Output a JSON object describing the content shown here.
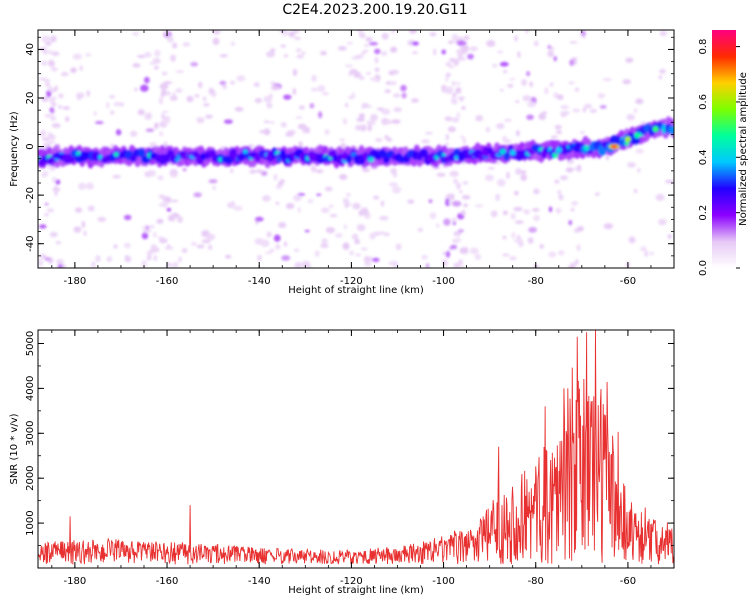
{
  "title": "C2E4.2023.200.19.20.G11",
  "chart_data": [
    {
      "type": "heatmap",
      "xlabel": "Height of straight line (km)",
      "ylabel": "Frequency (Hz)",
      "xlim": [
        -188,
        -50
      ],
      "ylim": [
        -50,
        48
      ],
      "xticks": [
        -180,
        -160,
        -140,
        -120,
        -100,
        -80,
        -60
      ],
      "yticks": [
        -40,
        -20,
        0,
        20,
        40
      ],
      "colorbar": {
        "label": "Normalized spectral amplitude",
        "range": [
          0,
          0.86
        ],
        "ticks": [
          0.0,
          0.2,
          0.4,
          0.6,
          0.8
        ],
        "colormap": [
          "#ffffff",
          "#e6c8f5",
          "#8c00ff",
          "#2200ff",
          "#00c8ff",
          "#00ff9c",
          "#7cff00",
          "#ffd000",
          "#ff2a00",
          "#ff0080"
        ]
      },
      "ridge": [
        {
          "x": -188,
          "y": -5
        },
        {
          "x": -180,
          "y": -4
        },
        {
          "x": -160,
          "y": -4
        },
        {
          "x": -140,
          "y": -4
        },
        {
          "x": -120,
          "y": -4
        },
        {
          "x": -100,
          "y": -4
        },
        {
          "x": -90,
          "y": -3
        },
        {
          "x": -80,
          "y": -2
        },
        {
          "x": -72,
          "y": -1
        },
        {
          "x": -65,
          "y": 0
        },
        {
          "x": -60,
          "y": 3
        },
        {
          "x": -55,
          "y": 7
        },
        {
          "x": -51,
          "y": 8
        }
      ],
      "ridge_peak": {
        "x": -63,
        "y": 0,
        "amplitude": 0.86
      }
    },
    {
      "type": "line",
      "xlabel": "Height of straight line (km)",
      "ylabel": "SNR (10 * v/v)",
      "xlim": [
        -188,
        -50
      ],
      "ylim": [
        0,
        5300
      ],
      "xticks": [
        -180,
        -160,
        -140,
        -120,
        -100,
        -80,
        -60
      ],
      "yticks": [
        1000,
        2000,
        3000,
        4000,
        5000
      ],
      "line_color": "#e83030",
      "envelope": [
        {
          "x": -188,
          "y": 500
        },
        {
          "x": -175,
          "y": 550
        },
        {
          "x": -160,
          "y": 500
        },
        {
          "x": -150,
          "y": 450
        },
        {
          "x": -140,
          "y": 380
        },
        {
          "x": -130,
          "y": 330
        },
        {
          "x": -120,
          "y": 330
        },
        {
          "x": -110,
          "y": 400
        },
        {
          "x": -100,
          "y": 600
        },
        {
          "x": -95,
          "y": 800
        },
        {
          "x": -90,
          "y": 1300
        },
        {
          "x": -85,
          "y": 1900
        },
        {
          "x": -80,
          "y": 2300
        },
        {
          "x": -75,
          "y": 3200
        },
        {
          "x": -70,
          "y": 4300
        },
        {
          "x": -67,
          "y": 4500
        },
        {
          "x": -63,
          "y": 3000
        },
        {
          "x": -60,
          "y": 1600
        },
        {
          "x": -55,
          "y": 1000
        },
        {
          "x": -50,
          "y": 800
        }
      ],
      "spikes": [
        {
          "x": -181,
          "y": 1150
        },
        {
          "x": -155,
          "y": 1400
        },
        {
          "x": -71,
          "y": 5150
        },
        {
          "x": -69,
          "y": 5250
        },
        {
          "x": -67,
          "y": 5300
        },
        {
          "x": -73,
          "y": 4000
        },
        {
          "x": -78,
          "y": 3600
        },
        {
          "x": -88,
          "y": 2700
        }
      ]
    }
  ]
}
